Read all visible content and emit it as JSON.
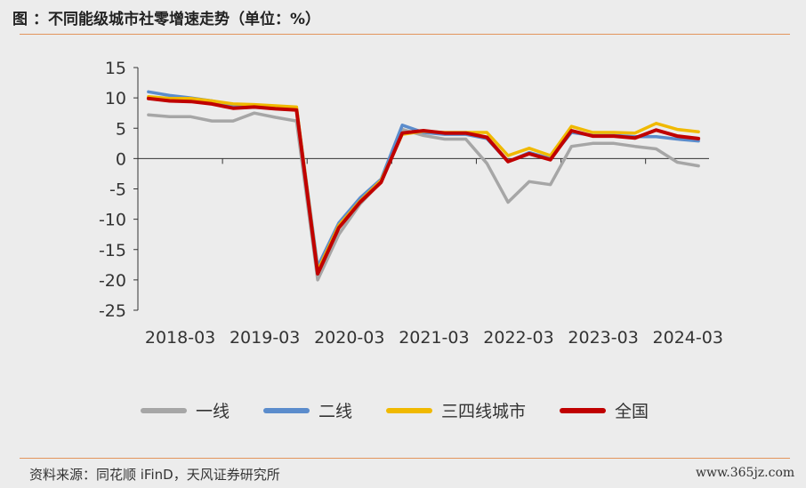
{
  "title": {
    "label": "图",
    "text": "：不同能级城市社零增速走势（单位：%）"
  },
  "source": "资料来源：同花顺 iFinD，天风证券研究所",
  "watermark": "www.365jz.com",
  "chart_data": {
    "type": "line",
    "title": "不同能级城市社零增速走势（单位：%）",
    "xlabel": "",
    "ylabel": "",
    "ylim": [
      -25,
      15
    ],
    "yticks": [
      "15",
      "10",
      "5",
      "0",
      "-5",
      "-10",
      "-15",
      "-20",
      "-25"
    ],
    "x_tick_labels": [
      "2018-03",
      "2019-03",
      "2020-03",
      "2021-03",
      "2022-03",
      "2023-03",
      "2024-03"
    ],
    "grid": false,
    "legend_position": "bottom",
    "x": [
      "2018-03",
      "2018-06",
      "2018-09",
      "2018-12",
      "2019-03",
      "2019-06",
      "2019-09",
      "2019-12",
      "2020-03",
      "2020-06",
      "2020-09",
      "2020-12",
      "2021-03",
      "2021-06",
      "2021-09",
      "2021-12",
      "2022-03",
      "2022-06",
      "2022-09",
      "2022-12",
      "2023-03",
      "2023-06",
      "2023-09",
      "2023-12",
      "2024-03",
      "2024-06",
      "2024-09"
    ],
    "series": [
      {
        "name": "一线",
        "color": "#a6a6a6",
        "values": [
          7.2,
          6.9,
          6.9,
          6.2,
          6.2,
          7.5,
          6.8,
          6.2,
          -20.0,
          -12.5,
          -7.5,
          -3.8,
          4.8,
          3.8,
          3.2,
          3.2,
          -0.8,
          -7.2,
          -3.8,
          -4.3,
          2.0,
          2.5,
          2.5,
          2.0,
          1.6,
          -0.6,
          -1.2
        ]
      },
      {
        "name": "二线",
        "color": "#5b8ccc",
        "values": [
          11.0,
          10.4,
          10.0,
          9.5,
          8.8,
          8.7,
          8.6,
          8.3,
          -17.8,
          -10.6,
          -6.5,
          -3.4,
          5.5,
          4.3,
          4.0,
          4.0,
          3.3,
          -0.5,
          1.0,
          0.0,
          4.3,
          3.8,
          3.8,
          3.6,
          3.6,
          3.2,
          2.9
        ]
      },
      {
        "name": "三四线城市",
        "color": "#f0b900",
        "values": [
          10.2,
          9.9,
          9.9,
          9.5,
          9.0,
          8.9,
          8.7,
          8.5,
          -18.5,
          -11.0,
          -7.0,
          -3.6,
          4.0,
          4.5,
          4.3,
          4.3,
          4.3,
          0.5,
          1.7,
          0.5,
          5.3,
          4.3,
          4.3,
          4.2,
          5.8,
          4.8,
          4.4
        ]
      },
      {
        "name": "全国",
        "color": "#c00000",
        "values": [
          9.9,
          9.5,
          9.4,
          9.0,
          8.3,
          8.5,
          8.2,
          8.0,
          -19.0,
          -11.4,
          -7.2,
          -3.9,
          4.2,
          4.6,
          4.2,
          4.2,
          3.5,
          -0.5,
          0.8,
          -0.2,
          4.6,
          3.7,
          3.7,
          3.4,
          4.7,
          3.7,
          3.3
        ]
      }
    ]
  }
}
